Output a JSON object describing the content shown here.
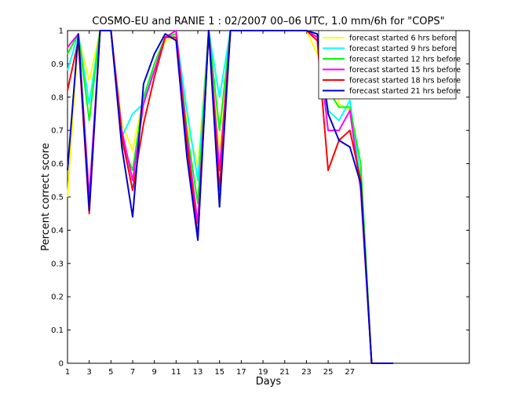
{
  "chart_data": {
    "type": "line",
    "title": "COSMO-EU and RANIE 1 : 02/2007 00–06 UTC, 1.0 mm/6h for \"COPS\"",
    "xlabel": "Days",
    "ylabel": "Percent correct score",
    "xlim": [
      1,
      38
    ],
    "ylim": [
      0,
      1
    ],
    "xticks": [
      1,
      3,
      5,
      7,
      9,
      11,
      13,
      15,
      17,
      19,
      21,
      23,
      25,
      27
    ],
    "yticks": [
      0,
      0.1,
      0.2,
      0.3,
      0.4,
      0.5,
      0.6,
      0.7,
      0.8,
      0.9,
      1
    ],
    "grid": false,
    "legend_position": "top-right",
    "x": [
      1,
      2,
      3,
      4,
      5,
      6,
      7,
      8,
      9,
      10,
      11,
      12,
      13,
      14,
      15,
      16,
      17,
      18,
      19,
      20,
      21,
      22,
      23,
      24,
      25,
      26,
      27,
      28,
      29,
      30,
      31
    ],
    "series": [
      {
        "name": "forecast started 6 hrs before",
        "color": "#ffff00",
        "values": [
          0.5,
          0.98,
          0.85,
          1.0,
          1.0,
          0.72,
          0.64,
          0.8,
          0.88,
          0.97,
          0.98,
          0.72,
          0.59,
          1.0,
          0.62,
          1.0,
          1.0,
          1.0,
          1.0,
          1.0,
          1.0,
          1.0,
          1.0,
          0.93,
          0.97,
          0.78,
          0.76,
          0.55,
          0.0,
          0.0,
          0.0
        ]
      },
      {
        "name": "forecast started 9 hrs before",
        "color": "#00ffff",
        "values": [
          0.88,
          0.99,
          0.78,
          1.0,
          1.0,
          0.68,
          0.75,
          0.78,
          0.9,
          0.98,
          0.99,
          0.76,
          0.55,
          1.0,
          0.8,
          1.0,
          1.0,
          1.0,
          1.0,
          1.0,
          1.0,
          1.0,
          1.0,
          0.99,
          0.76,
          0.73,
          0.79,
          0.55,
          0.0,
          0.0,
          0.0
        ]
      },
      {
        "name": "forecast started 12 hrs before",
        "color": "#00ff00",
        "values": [
          0.93,
          0.99,
          0.73,
          1.0,
          1.0,
          0.66,
          0.58,
          0.8,
          0.9,
          0.98,
          0.99,
          0.7,
          0.48,
          1.0,
          0.7,
          1.0,
          1.0,
          1.0,
          1.0,
          1.0,
          1.0,
          1.0,
          1.0,
          0.98,
          0.82,
          0.77,
          0.77,
          0.6,
          0.0,
          0.0,
          0.0
        ]
      },
      {
        "name": "forecast started 15 hrs before",
        "color": "#ff00ff",
        "values": [
          0.95,
          0.99,
          0.5,
          1.0,
          1.0,
          0.7,
          0.55,
          0.78,
          0.88,
          0.98,
          1.0,
          0.68,
          0.42,
          1.0,
          0.58,
          1.0,
          1.0,
          1.0,
          1.0,
          1.0,
          1.0,
          1.0,
          1.0,
          0.98,
          0.7,
          0.7,
          0.76,
          0.52,
          0.0,
          0.0,
          0.0
        ]
      },
      {
        "name": "forecast started 18 hrs before",
        "color": "#ff0000",
        "values": [
          0.82,
          0.97,
          0.45,
          1.0,
          1.0,
          0.68,
          0.52,
          0.72,
          0.86,
          0.98,
          0.98,
          0.66,
          0.38,
          1.0,
          0.52,
          1.0,
          1.0,
          1.0,
          1.0,
          1.0,
          1.0,
          1.0,
          1.0,
          0.97,
          0.58,
          0.67,
          0.7,
          0.55,
          0.0,
          0.0,
          0.0
        ]
      },
      {
        "name": "forecast started 21 hrs before",
        "color": "#0000cc",
        "values": [
          0.58,
          0.99,
          0.46,
          1.0,
          1.0,
          0.65,
          0.44,
          0.84,
          0.93,
          0.99,
          0.97,
          0.62,
          0.37,
          1.0,
          0.47,
          1.0,
          1.0,
          1.0,
          1.0,
          1.0,
          1.0,
          1.0,
          1.0,
          0.99,
          0.75,
          0.67,
          0.65,
          0.54,
          0.0,
          0.0,
          0.0
        ]
      }
    ]
  }
}
